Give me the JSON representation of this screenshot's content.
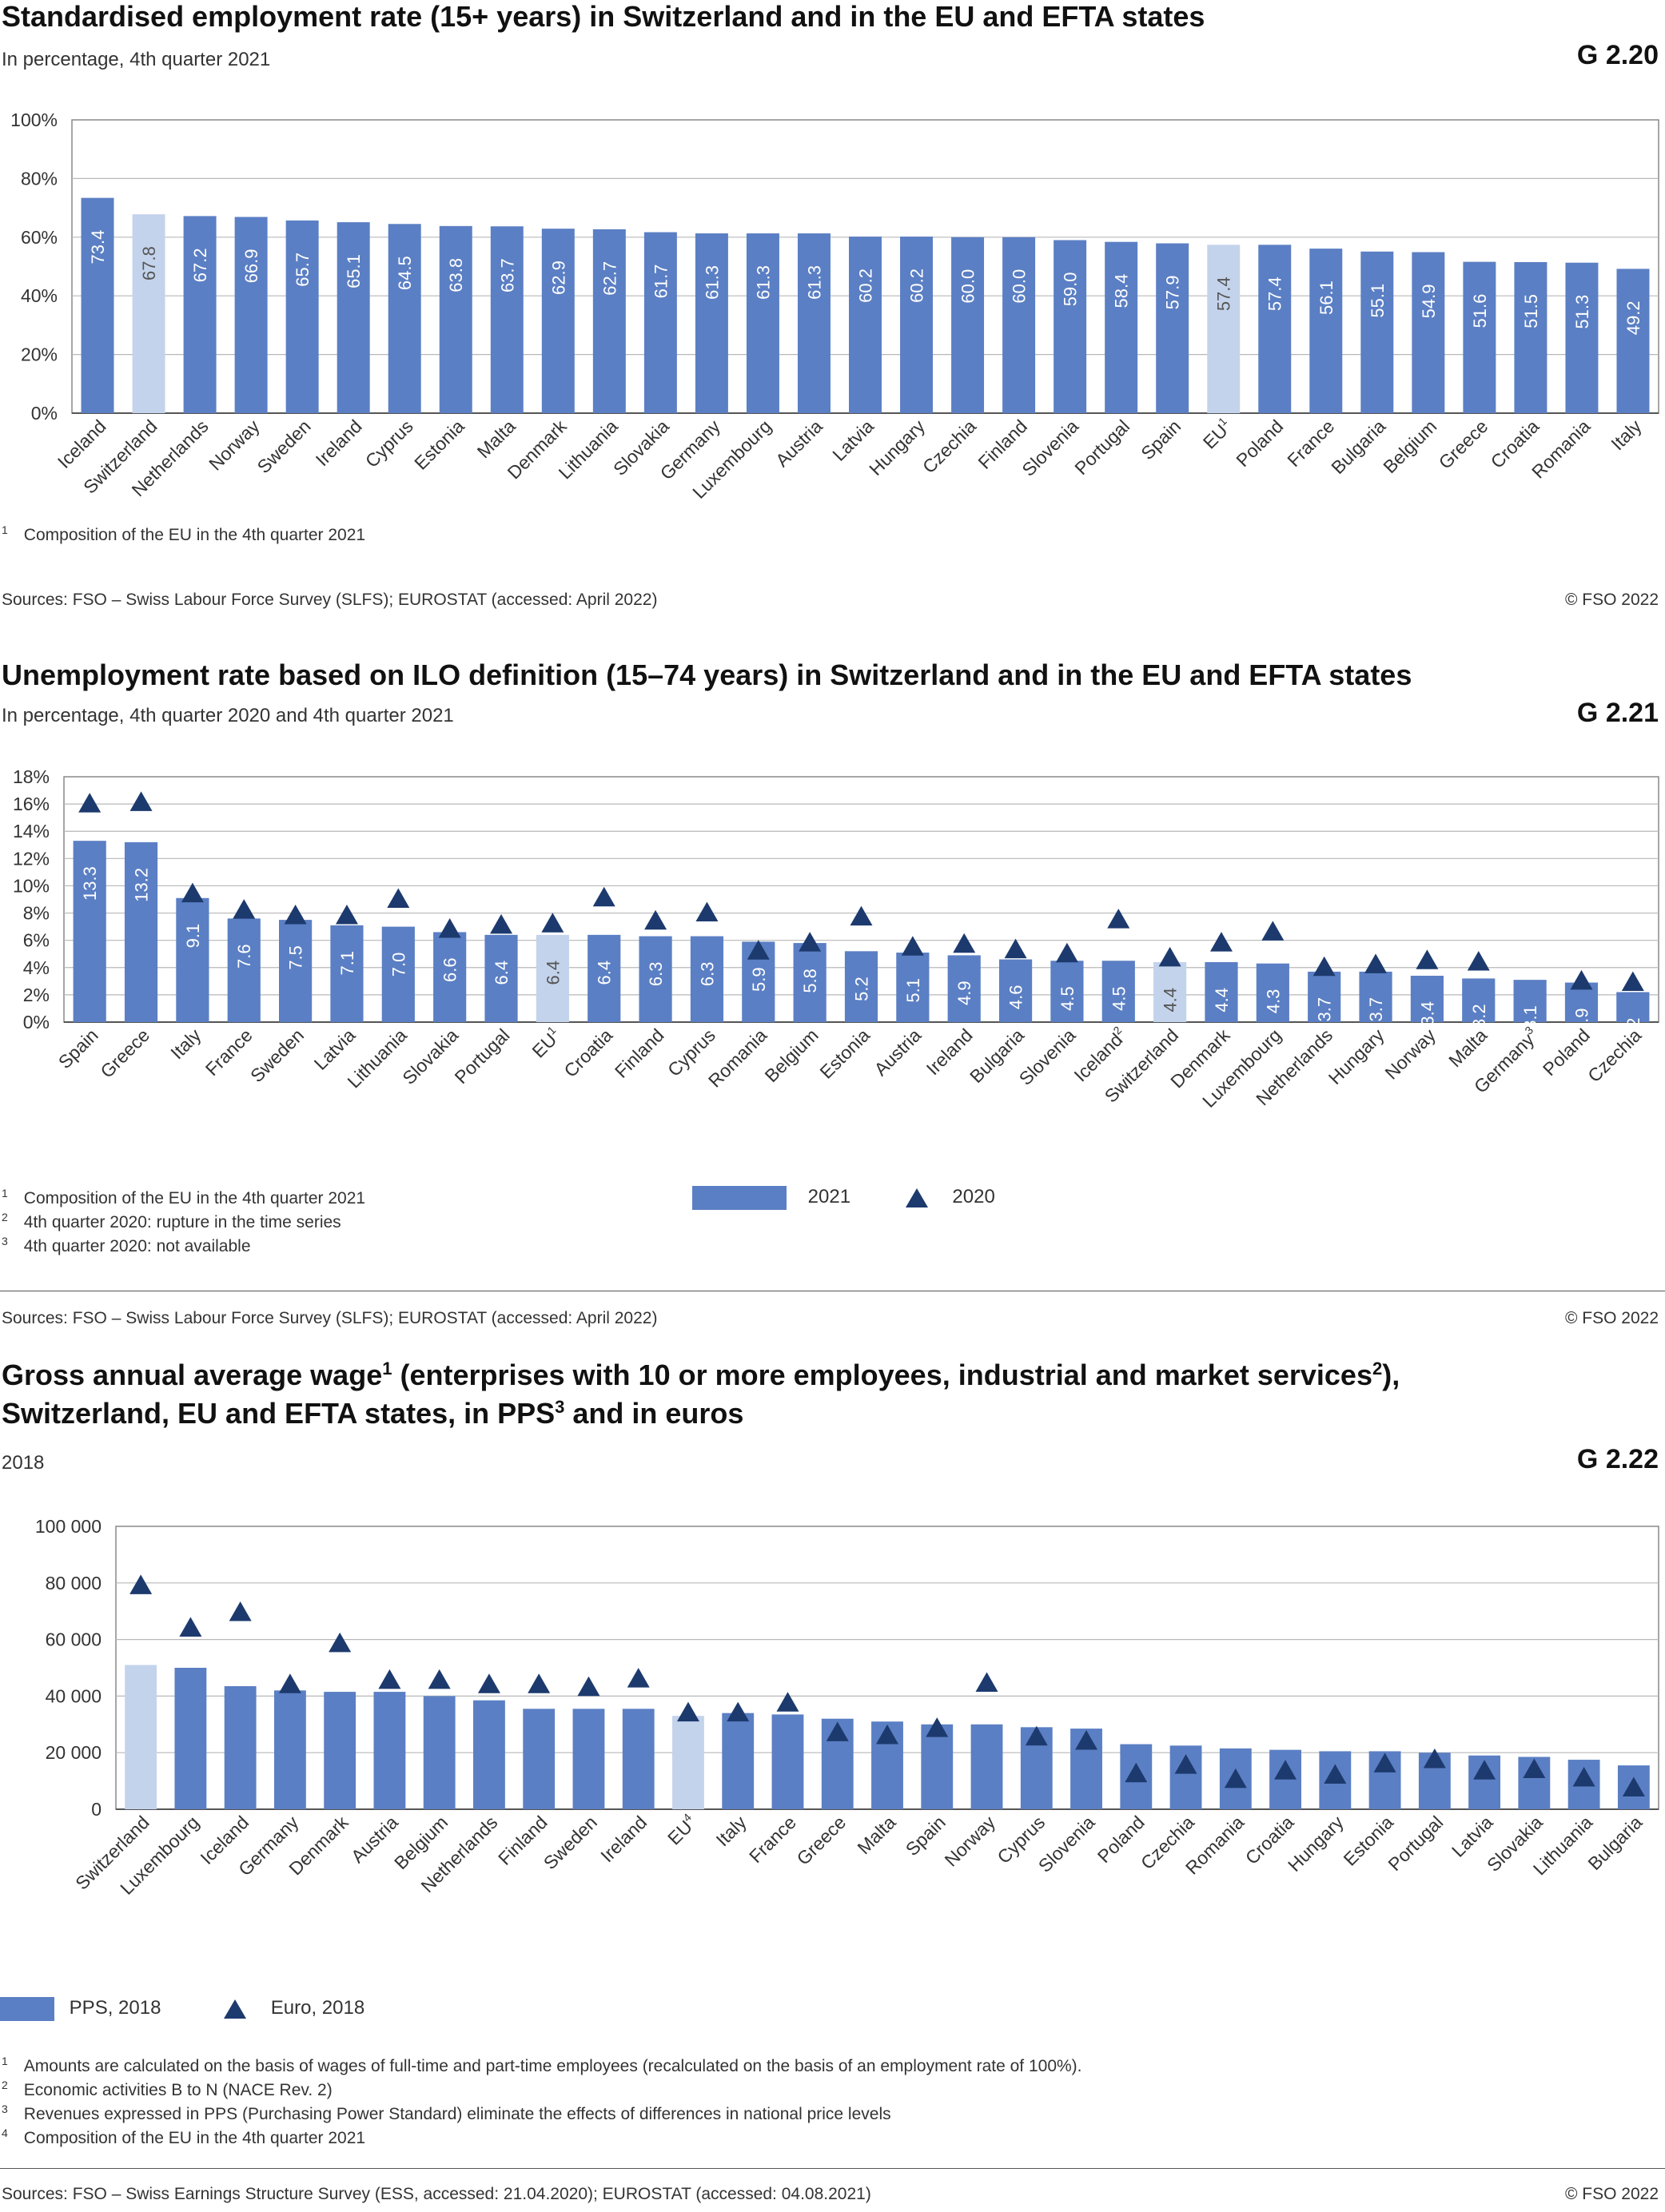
{
  "colors": {
    "bar": "#5b7fc4",
    "highlight": "#c4d3ec",
    "marker": "#1d3a6e",
    "grid": "#b8b8b8",
    "axis": "#555555",
    "value_label": "#ffffff",
    "text": "#333333"
  },
  "charts": [
    {
      "code": "G 2.20",
      "title": "Standardised employment rate (15+ years) in Switzerland and in the EU and EFTA states",
      "subtitle": "In percentage, 4th quarter 2021",
      "footnotes": [
        {
          "mark": "1",
          "text": "Composition of the EU in the 4th quarter 2021"
        }
      ],
      "source": "Sources: FSO – Swiss Labour Force Survey (SLFS); EUROSTAT (accessed: April 2022)",
      "copyright": "© FSO 2022"
    },
    {
      "code": "G 2.21",
      "title": "Unemployment rate based on ILO definition (15–74 years) in Switzerland and in the EU and EFTA states",
      "subtitle": "In percentage, 4th quarter 2020 and 4th quarter 2021",
      "footnotes": [
        {
          "mark": "1",
          "text": "Composition of the EU in the 4th quarter 2021"
        },
        {
          "mark": "2",
          "text": "4th quarter 2020: rupture in the time series"
        },
        {
          "mark": "3",
          "text": "4th quarter 2020: not available"
        }
      ],
      "legend": {
        "bar": "2021",
        "marker": "2020"
      },
      "source": "Sources: FSO – Swiss Labour Force Survey (SLFS); EUROSTAT (accessed: April 2022)",
      "copyright": "© FSO 2022"
    },
    {
      "code": "G 2.22",
      "title_line1": "Gross annual average wage",
      "title_sup1": "1",
      "title_line1b": " (enterprises with 10 or more employees, industrial and market services",
      "title_sup2": "2",
      "title_line1c": "),",
      "title_line2": "Switzerland, EU and EFTA states, in PPS",
      "title_sup3": "3",
      "title_line2b": " and in euros",
      "subtitle": "2018",
      "footnotes": [
        {
          "mark": "1",
          "text": "Amounts are calculated on the basis of wages of full-time and part-time employees (recalculated on the basis of an employment rate of 100%)."
        },
        {
          "mark": "2",
          "text": "Economic activities B to N (NACE Rev. 2)"
        },
        {
          "mark": "3",
          "text": "Revenues expressed in PPS (Purchasing Power Standard) eliminate the effects of differences in national price levels"
        },
        {
          "mark": "4",
          "text": "Composition of the EU in the 4th quarter 2021"
        }
      ],
      "legend": {
        "bar": "PPS, 2018",
        "marker": "Euro, 2018"
      },
      "source": "Sources: FSO – Swiss Earnings Structure Survey (ESS, accessed: 21.04.2020); EUROSTAT (accessed: 04.08.2021)",
      "copyright": "© FSO 2022"
    }
  ],
  "chart_data": [
    {
      "type": "bar",
      "title": "Standardised employment rate (15+ years) in Switzerland and in the EU and EFTA states",
      "ylim": [
        0,
        100
      ],
      "yticks": [
        "0%",
        "20%",
        "40%",
        "60%",
        "80%",
        "100%"
      ],
      "grid": true,
      "categories": [
        "Iceland",
        "Switzerland",
        "Netherlands",
        "Norway",
        "Sweden",
        "Ireland",
        "Cyprus",
        "Estonia",
        "Malta",
        "Denmark",
        "Lithuania",
        "Slovakia",
        "Germany",
        "Luxembourg",
        "Austria",
        "Latvia",
        "Hungary",
        "Czechia",
        "Finland",
        "Slovenia",
        "Portugal",
        "Spain",
        "EU",
        "Poland",
        "France",
        "Bulgaria",
        "Belgium",
        "Greece",
        "Croatia",
        "Romania",
        "Italy"
      ],
      "category_marks": {
        "EU": "1"
      },
      "highlight": [
        "Switzerland",
        "EU"
      ],
      "series": [
        {
          "name": "",
          "values": [
            73.4,
            67.8,
            67.2,
            66.9,
            65.7,
            65.1,
            64.5,
            63.8,
            63.7,
            62.9,
            62.7,
            61.7,
            61.3,
            61.3,
            61.3,
            60.2,
            60.2,
            60.0,
            60.0,
            59.0,
            58.4,
            57.9,
            57.4,
            57.4,
            56.1,
            55.1,
            54.9,
            51.6,
            51.5,
            51.3,
            49.2
          ]
        }
      ]
    },
    {
      "type": "bar",
      "title": "Unemployment rate based on ILO definition (15–74 years) in Switzerland and in the EU and EFTA states",
      "ylim": [
        0,
        18
      ],
      "yticks": [
        "0%",
        "2%",
        "4%",
        "6%",
        "8%",
        "10%",
        "12%",
        "14%",
        "16%",
        "18%"
      ],
      "grid": true,
      "categories": [
        "Spain",
        "Greece",
        "Italy",
        "France",
        "Sweden",
        "Latvia",
        "Lithuania",
        "Slovakia",
        "Portugal",
        "EU",
        "Croatia",
        "Finland",
        "Cyprus",
        "Romania",
        "Belgium",
        "Estonia",
        "Austria",
        "Ireland",
        "Bulgaria",
        "Slovenia",
        "Iceland",
        "Switzerland",
        "Denmark",
        "Luxembourg",
        "Netherlands",
        "Hungary",
        "Norway",
        "Malta",
        "Germany",
        "Poland",
        "Czechia"
      ],
      "category_marks": {
        "EU": "1",
        "Iceland": "2",
        "Germany": "3"
      },
      "highlight": [
        "EU",
        "Switzerland"
      ],
      "legend": "bottom-center",
      "series": [
        {
          "name": "2021",
          "type": "bar",
          "values": [
            13.3,
            13.2,
            9.1,
            7.6,
            7.5,
            7.1,
            7.0,
            6.6,
            6.4,
            6.4,
            6.4,
            6.3,
            6.3,
            5.9,
            5.8,
            5.2,
            5.1,
            4.9,
            4.6,
            4.5,
            4.5,
            4.4,
            4.4,
            4.3,
            3.7,
            3.7,
            3.4,
            3.2,
            3.1,
            2.9,
            2.2
          ]
        },
        {
          "name": "2020",
          "type": "marker",
          "values": [
            16.0,
            16.1,
            9.4,
            8.2,
            7.8,
            7.8,
            9.0,
            6.8,
            7.1,
            7.2,
            9.1,
            7.4,
            8.0,
            5.2,
            5.8,
            7.7,
            5.5,
            5.7,
            5.3,
            5.0,
            7.5,
            4.7,
            5.8,
            6.6,
            4.0,
            4.2,
            4.5,
            4.4,
            null,
            3.0,
            2.9
          ]
        }
      ]
    },
    {
      "type": "bar",
      "title": "Gross annual average wage (enterprises with 10 or more employees, industrial and market services), Switzerland, EU and EFTA states, in PPS and in euros",
      "ylim": [
        0,
        100000
      ],
      "yticks": [
        "0",
        "20 000",
        "40 000",
        "60 000",
        "80 000",
        "100 000"
      ],
      "grid": true,
      "categories": [
        "Switzerland",
        "Luxembourg",
        "Iceland",
        "Germany",
        "Denmark",
        "Austria",
        "Belgium",
        "Netherlands",
        "Finland",
        "Sweden",
        "Ireland",
        "EU",
        "Italy",
        "France",
        "Greece",
        "Malta",
        "Spain",
        "Norway",
        "Cyprus",
        "Slovenia",
        "Poland",
        "Czechia",
        "Romania",
        "Croatia",
        "Hungary",
        "Estonia",
        "Portugal",
        "Latvia",
        "Slovakia",
        "Lithuania",
        "Bulgaria"
      ],
      "category_marks": {
        "EU": "4"
      },
      "highlight": [
        "Switzerland",
        "EU"
      ],
      "legend": "bottom-left",
      "series": [
        {
          "name": "PPS, 2018",
          "type": "bar",
          "values": [
            51000,
            50000,
            43500,
            42000,
            41500,
            41500,
            40000,
            38500,
            35500,
            35500,
            35500,
            33000,
            34000,
            33500,
            32000,
            31000,
            30000,
            30000,
            29000,
            28500,
            23000,
            22500,
            21500,
            21000,
            20500,
            20500,
            20000,
            19000,
            18500,
            17500,
            15500
          ]
        },
        {
          "name": "Euro, 2018",
          "type": "marker",
          "values": [
            79000,
            64000,
            69500,
            44000,
            58500,
            45500,
            45500,
            44000,
            44000,
            43000,
            46000,
            34000,
            34000,
            37500,
            27000,
            26000,
            28500,
            44500,
            25500,
            24000,
            12500,
            15500,
            10500,
            13500,
            12000,
            16000,
            17500,
            13500,
            14000,
            11000,
            7500
          ]
        }
      ]
    }
  ]
}
